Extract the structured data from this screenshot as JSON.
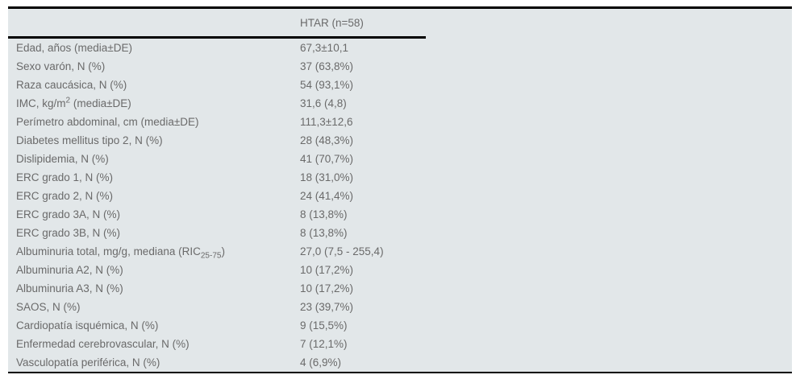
{
  "colors": {
    "page_bg": "#ffffff",
    "table_bg": "#e2e7e9",
    "text": "#6a6a6a",
    "rule": "#000000"
  },
  "table": {
    "header": {
      "col2": "HTAR (n=58)"
    },
    "rows": [
      {
        "label": "Edad, años (media±DE)",
        "value": "67,3±10,1"
      },
      {
        "label": "Sexo varón, N (%)",
        "value": "37 (63,8%)"
      },
      {
        "label": "Raza caucásica, N (%)",
        "value": "54 (93,1%)"
      },
      {
        "label_pre": "IMC, kg/m",
        "label_sup": "2",
        "label_post": " (media±DE)",
        "value": "31,6 (4,8)"
      },
      {
        "label": "Perímetro abdominal, cm (media±DE)",
        "value": "111,3±12,6"
      },
      {
        "label": "Diabetes mellitus tipo 2, N (%)",
        "value": "28 (48,3%)"
      },
      {
        "label": "Dislipidemia, N (%)",
        "value": "41 (70,7%)"
      },
      {
        "label": "ERC grado 1, N (%)",
        "value": "18 (31,0%)"
      },
      {
        "label": "ERC grado 2, N (%)",
        "value": "24 (41,4%)"
      },
      {
        "label": "ERC grado 3A, N (%)",
        "value": "8 (13,8%)"
      },
      {
        "label": "ERC grado 3B, N (%)",
        "value": "8 (13,8%)"
      },
      {
        "label_pre": "Albuminuria total, mg/g, mediana (RIC",
        "label_sub": "25-75",
        "label_post": ")",
        "value": "27,0 (7,5 - 255,4)"
      },
      {
        "label": "Albuminuria A2, N (%)",
        "value": "10 (17,2%)"
      },
      {
        "label": "Albuminuria A3, N (%)",
        "value": "10 (17,2%)"
      },
      {
        "label": "SAOS, N (%)",
        "value": "23 (39,7%)"
      },
      {
        "label": "Cardiopatía isquémica, N (%)",
        "value": "9 (15,5%)"
      },
      {
        "label": "Enfermedad cerebrovascular, N (%)",
        "value": "7 (12,1%)"
      },
      {
        "label": "Vasculopatía periférica, N (%)",
        "value": "4 (6,9%)"
      }
    ]
  }
}
